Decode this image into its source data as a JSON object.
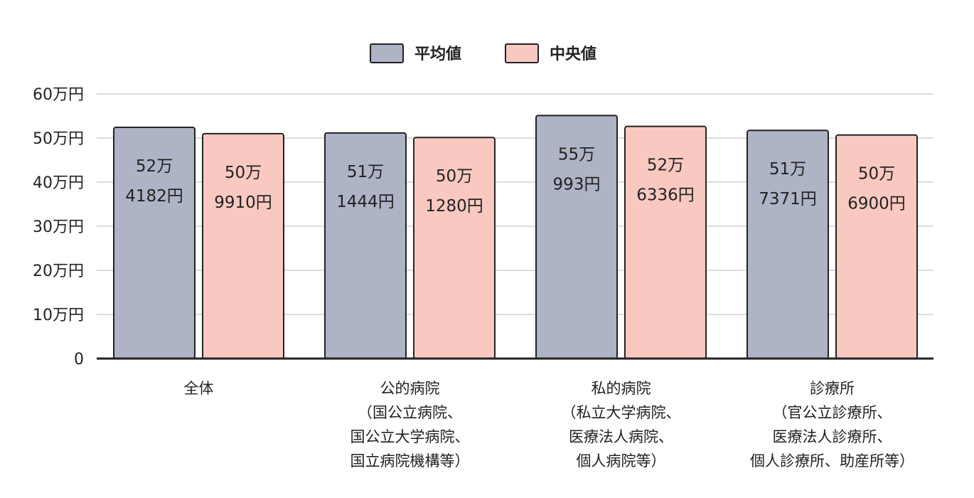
{
  "chart_data": {
    "type": "bar",
    "categories": [
      [
        "全体"
      ],
      [
        "公的病院",
        "（国公立病院、",
        "国公立大学病院、",
        "国立病院機構等）"
      ],
      [
        "私的病院",
        "（私立大学病院、",
        "医療法人病院、",
        "個人病院等）"
      ],
      [
        "診療所",
        "（官公立診療所、",
        "医療法人診療所、",
        "個人診療所、助産所等）"
      ]
    ],
    "series": [
      {
        "name": "平均値",
        "color": "#aeb4c6",
        "values": [
          524182,
          511444,
          550993,
          517371
        ],
        "labels": [
          [
            "52万",
            "4182円"
          ],
          [
            "51万",
            "1444円"
          ],
          [
            "55万",
            "993円"
          ],
          [
            "51万",
            "7371円"
          ]
        ]
      },
      {
        "name": "中央値",
        "color": "#f9c9c1",
        "values": [
          509910,
          501280,
          526336,
          506900
        ],
        "labels": [
          [
            "50万",
            "9910円"
          ],
          [
            "50万",
            "1280円"
          ],
          [
            "52万",
            "6336円"
          ],
          [
            "50万",
            "6900円"
          ]
        ]
      }
    ],
    "ylim": [
      0,
      600000
    ],
    "yticks": [
      {
        "value": 0,
        "label": "0"
      },
      {
        "value": 100000,
        "label": "10万円"
      },
      {
        "value": 200000,
        "label": "20万円"
      },
      {
        "value": 300000,
        "label": "30万円"
      },
      {
        "value": 400000,
        "label": "40万円"
      },
      {
        "value": 500000,
        "label": "50万円"
      },
      {
        "value": 600000,
        "label": "60万円"
      }
    ],
    "grid": true,
    "legend": "top-center",
    "title": "",
    "xlabel": "",
    "ylabel": ""
  }
}
